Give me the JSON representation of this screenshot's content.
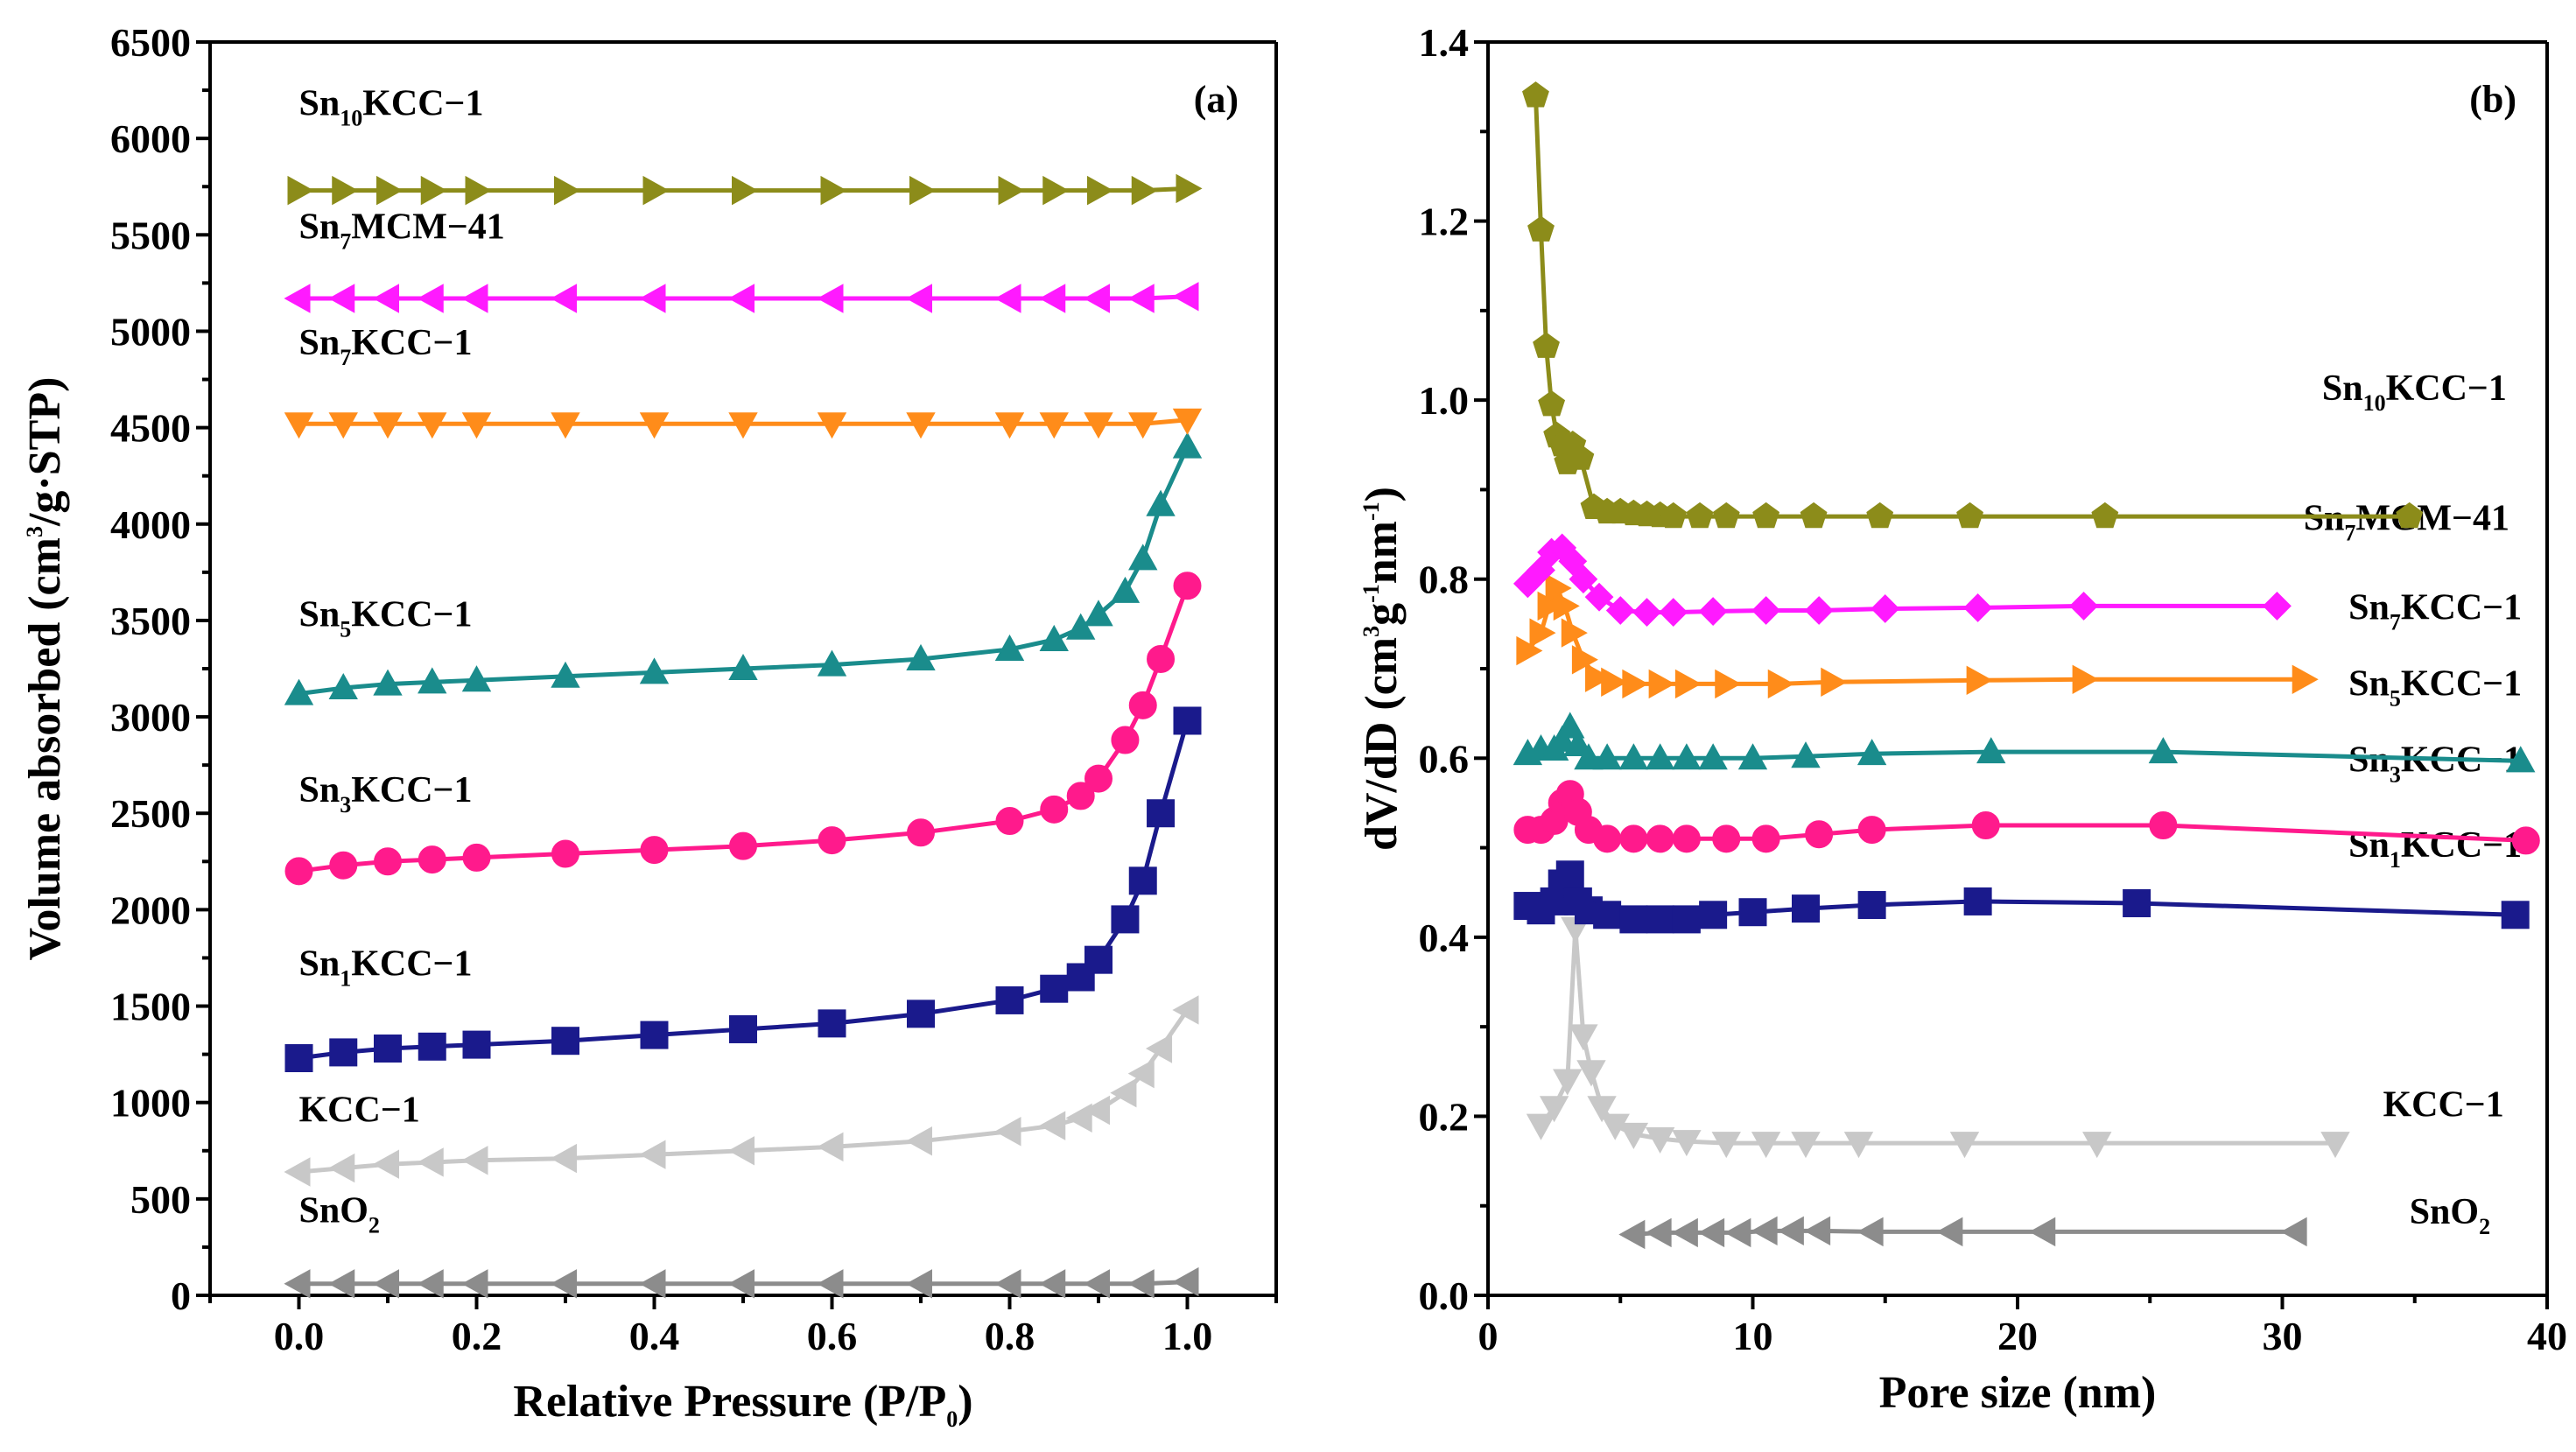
{
  "chart_data": [
    {
      "type": "scatter",
      "panel": "(a)",
      "xlabel": "Relative Pressure (P/P0)",
      "ylabel": "Volume absorbed (cm3/g·STP)",
      "xlim": [
        -0.1,
        1.1
      ],
      "ylim": [
        0,
        6500
      ],
      "xticks": [
        0.0,
        0.2,
        0.4,
        0.6,
        0.8,
        1.0
      ],
      "xtick_labels": [
        "0.0",
        "0.2",
        "0.4",
        "0.6",
        "0.8",
        "1.0"
      ],
      "yticks": [
        0,
        500,
        1000,
        1500,
        2000,
        2500,
        3000,
        3500,
        4000,
        4500,
        5000,
        5500,
        6000,
        6500
      ],
      "ytick_labels": [
        "0",
        "500",
        "1000",
        "1500",
        "2000",
        "2500",
        "3000",
        "3500",
        "4000",
        "4500",
        "5000",
        "5500",
        "6000",
        "6500"
      ],
      "series": [
        {
          "name": "SnO2",
          "label_main": "SnO",
          "label_sub": "2",
          "color": "#8c8c8c",
          "marker": "triangle-left",
          "label_pos": [
            0.0,
            380
          ],
          "x": [
            0.0,
            0.05,
            0.1,
            0.15,
            0.2,
            0.3,
            0.4,
            0.5,
            0.6,
            0.7,
            0.8,
            0.85,
            0.9,
            0.95,
            1.0
          ],
          "y": [
            60,
            60,
            60,
            60,
            60,
            60,
            60,
            60,
            60,
            60,
            60,
            60,
            60,
            60,
            70
          ]
        },
        {
          "name": "KCC-1",
          "label_main": "KCC−1",
          "label_sub": "",
          "color": "#c8c8c8",
          "marker": "triangle-left",
          "label_pos": [
            0.0,
            900
          ],
          "x": [
            0.0,
            0.05,
            0.1,
            0.15,
            0.2,
            0.3,
            0.4,
            0.5,
            0.6,
            0.7,
            0.8,
            0.85,
            0.88,
            0.9,
            0.93,
            0.95,
            0.97,
            1.0
          ],
          "y": [
            640,
            660,
            680,
            690,
            700,
            710,
            730,
            750,
            770,
            800,
            850,
            880,
            920,
            960,
            1050,
            1150,
            1280,
            1480
          ]
        },
        {
          "name": "Sn1KCC-1",
          "label_main": "Sn",
          "label_sub": "1",
          "label_tail": "KCC−1",
          "color": "#1a1a8c",
          "marker": "square",
          "label_pos": [
            0.0,
            1660
          ],
          "x": [
            0.0,
            0.05,
            0.1,
            0.15,
            0.2,
            0.3,
            0.4,
            0.5,
            0.6,
            0.7,
            0.8,
            0.85,
            0.88,
            0.9,
            0.93,
            0.95,
            0.97,
            1.0
          ],
          "y": [
            1230,
            1260,
            1280,
            1290,
            1300,
            1320,
            1350,
            1380,
            1410,
            1460,
            1530,
            1590,
            1650,
            1740,
            1950,
            2150,
            2500,
            2980
          ]
        },
        {
          "name": "Sn3KCC-1",
          "label_main": "Sn",
          "label_sub": "3",
          "label_tail": "KCC−1",
          "color": "#ff1a8c",
          "marker": "circle",
          "label_pos": [
            0.0,
            2560
          ],
          "x": [
            0.0,
            0.05,
            0.1,
            0.15,
            0.2,
            0.3,
            0.4,
            0.5,
            0.6,
            0.7,
            0.8,
            0.85,
            0.88,
            0.9,
            0.93,
            0.95,
            0.97,
            1.0
          ],
          "y": [
            2200,
            2230,
            2250,
            2260,
            2270,
            2290,
            2310,
            2330,
            2360,
            2400,
            2460,
            2520,
            2590,
            2680,
            2880,
            3060,
            3300,
            3680
          ]
        },
        {
          "name": "Sn5KCC-1",
          "label_main": "Sn",
          "label_sub": "5",
          "label_tail": "KCC−1",
          "color": "#1a8c8c",
          "marker": "triangle-up",
          "label_pos": [
            0.0,
            3470
          ],
          "x": [
            0.0,
            0.05,
            0.1,
            0.15,
            0.2,
            0.3,
            0.4,
            0.5,
            0.6,
            0.7,
            0.8,
            0.85,
            0.88,
            0.9,
            0.93,
            0.95,
            0.97,
            1.0
          ],
          "y": [
            3120,
            3150,
            3170,
            3180,
            3190,
            3210,
            3230,
            3250,
            3270,
            3300,
            3350,
            3400,
            3460,
            3530,
            3650,
            3820,
            4100,
            4400
          ]
        },
        {
          "name": "Sn7KCC-1",
          "label_main": "Sn",
          "label_sub": "7",
          "label_tail": "KCC−1",
          "color": "#ff8c1a",
          "marker": "triangle-down",
          "label_pos": [
            0.0,
            4880
          ],
          "x": [
            0.0,
            0.05,
            0.1,
            0.15,
            0.2,
            0.3,
            0.4,
            0.5,
            0.6,
            0.7,
            0.8,
            0.85,
            0.9,
            0.95,
            1.0
          ],
          "y": [
            4520,
            4520,
            4520,
            4520,
            4520,
            4520,
            4520,
            4520,
            4520,
            4520,
            4520,
            4520,
            4520,
            4520,
            4540
          ]
        },
        {
          "name": "Sn7MCM-41",
          "label_main": "Sn",
          "label_sub": "7",
          "label_tail": "MCM−41",
          "color": "#ff1aff",
          "marker": "triangle-left",
          "label_pos": [
            0.0,
            5480
          ],
          "x": [
            0.0,
            0.05,
            0.1,
            0.15,
            0.2,
            0.3,
            0.4,
            0.5,
            0.6,
            0.7,
            0.8,
            0.85,
            0.9,
            0.95,
            1.0
          ],
          "y": [
            5170,
            5170,
            5170,
            5170,
            5170,
            5170,
            5170,
            5170,
            5170,
            5170,
            5170,
            5170,
            5170,
            5170,
            5180
          ]
        },
        {
          "name": "Sn10KCC-1",
          "label_main": "Sn",
          "label_sub": "10",
          "label_tail": "KCC−1",
          "color": "#8c8c1a",
          "marker": "triangle-right",
          "label_pos": [
            0.0,
            6120
          ],
          "x": [
            0.0,
            0.05,
            0.1,
            0.15,
            0.2,
            0.3,
            0.4,
            0.5,
            0.6,
            0.7,
            0.8,
            0.85,
            0.9,
            0.95,
            1.0
          ],
          "y": [
            5730,
            5730,
            5730,
            5730,
            5730,
            5730,
            5730,
            5730,
            5730,
            5730,
            5730,
            5730,
            5730,
            5730,
            5740
          ]
        }
      ]
    },
    {
      "type": "line",
      "panel": "(b)",
      "xlabel": "Pore size (nm)",
      "ylabel": "dV/dD (cm3g-1nm-1)",
      "xlim": [
        0,
        40
      ],
      "ylim": [
        0.0,
        1.4
      ],
      "xticks": [
        0,
        10,
        20,
        30,
        40
      ],
      "xtick_labels": [
        "0",
        "10",
        "20",
        "30",
        "40"
      ],
      "yticks": [
        0.0,
        0.2,
        0.4,
        0.6,
        0.8,
        1.0,
        1.2,
        1.4
      ],
      "ytick_labels": [
        "0.0",
        "0.2",
        "0.4",
        "0.6",
        "0.8",
        "1.0",
        "1.2",
        "1.4"
      ],
      "series": [
        {
          "name": "SnO2",
          "label_main": "SnO",
          "label_sub": "2",
          "color": "#8c8c8c",
          "marker": "triangle-left",
          "label_pos": [
            34.8,
            0.08
          ],
          "x": [
            5.5,
            6.5,
            7.5,
            8.5,
            9.5,
            10.5,
            11.5,
            12.5,
            14.5,
            17.5,
            21,
            30.5
          ],
          "y": [
            0.068,
            0.07,
            0.07,
            0.07,
            0.07,
            0.072,
            0.072,
            0.072,
            0.071,
            0.071,
            0.071,
            0.071
          ]
        },
        {
          "name": "KCC-1",
          "label_main": "KCC−1",
          "label_sub": "",
          "color": "#c8c8c8",
          "marker": "triangle-down",
          "label_pos": [
            33.8,
            0.2
          ],
          "x": [
            2.0,
            2.5,
            3.0,
            3.3,
            3.6,
            3.9,
            4.3,
            4.8,
            5.5,
            6.5,
            7.5,
            9,
            10.5,
            12,
            14,
            18,
            23,
            32
          ],
          "y": [
            0.19,
            0.21,
            0.24,
            0.41,
            0.29,
            0.25,
            0.21,
            0.19,
            0.18,
            0.175,
            0.172,
            0.17,
            0.17,
            0.17,
            0.17,
            0.17,
            0.17,
            0.17
          ]
        },
        {
          "name": "Sn1KCC-1",
          "label_main": "Sn",
          "label_sub": "1",
          "label_tail": "KCC−1",
          "color": "#1a1a8c",
          "marker": "square",
          "label_pos": [
            32.5,
            0.49
          ],
          "x": [
            1.5,
            2.0,
            2.5,
            2.8,
            3.1,
            3.4,
            3.8,
            4.5,
            5.5,
            6.5,
            7.5,
            8.5,
            10,
            12,
            14.5,
            18.5,
            24.5,
            38.8
          ],
          "y": [
            0.435,
            0.43,
            0.44,
            0.46,
            0.47,
            0.44,
            0.43,
            0.425,
            0.42,
            0.42,
            0.42,
            0.425,
            0.428,
            0.432,
            0.436,
            0.44,
            0.438,
            0.425
          ]
        },
        {
          "name": "Sn3KCC-1",
          "label_main": "Sn",
          "label_sub": "3",
          "label_tail": "KCC−1",
          "color": "#ff1a8c",
          "marker": "circle",
          "label_pos": [
            32.5,
            0.585
          ],
          "x": [
            1.5,
            2.0,
            2.5,
            2.8,
            3.1,
            3.4,
            3.8,
            4.5,
            5.5,
            6.5,
            7.5,
            9,
            10.5,
            12.5,
            14.5,
            18.8,
            25.5,
            39.2
          ],
          "y": [
            0.52,
            0.52,
            0.53,
            0.55,
            0.56,
            0.54,
            0.52,
            0.51,
            0.51,
            0.51,
            0.51,
            0.51,
            0.51,
            0.515,
            0.52,
            0.525,
            0.525,
            0.508
          ]
        },
        {
          "name": "Sn5KCC-1",
          "label_main": "Sn",
          "label_sub": "5",
          "label_tail": "KCC−1",
          "color": "#1a8c8c",
          "marker": "triangle-up",
          "label_pos": [
            32.5,
            0.67
          ],
          "x": [
            1.5,
            2.0,
            2.5,
            2.8,
            3.1,
            3.4,
            3.8,
            4.5,
            5.5,
            6.5,
            7.5,
            8.5,
            10,
            12,
            14.5,
            19,
            25.5,
            39
          ],
          "y": [
            0.605,
            0.61,
            0.61,
            0.62,
            0.635,
            0.615,
            0.6,
            0.6,
            0.6,
            0.6,
            0.6,
            0.6,
            0.6,
            0.602,
            0.605,
            0.607,
            0.607,
            0.597
          ]
        },
        {
          "name": "Sn7KCC-1",
          "label_main": "Sn",
          "label_sub": "7",
          "label_tail": "KCC−1",
          "color": "#ff8c1a",
          "marker": "triangle-right",
          "label_pos": [
            32.5,
            0.755
          ],
          "x": [
            1.5,
            2.0,
            2.3,
            2.6,
            2.9,
            3.2,
            3.6,
            4.1,
            4.7,
            5.5,
            6.5,
            7.5,
            9,
            11,
            13,
            18.5,
            22.5,
            30.8
          ],
          "y": [
            0.72,
            0.74,
            0.77,
            0.79,
            0.77,
            0.74,
            0.71,
            0.69,
            0.685,
            0.683,
            0.683,
            0.683,
            0.683,
            0.683,
            0.685,
            0.687,
            0.688,
            0.688
          ]
        },
        {
          "name": "Sn7MCM-41",
          "label_main": "Sn",
          "label_sub": "7",
          "label_tail": "MCM−41",
          "color": "#ff1aff",
          "marker": "diamond",
          "label_pos": [
            30.8,
            0.855
          ],
          "x": [
            1.5,
            2.0,
            2.4,
            2.8,
            3.2,
            3.6,
            4.2,
            5.0,
            6.0,
            7.0,
            8.5,
            10.5,
            12.5,
            15,
            18.5,
            22.5,
            29.8
          ],
          "y": [
            0.795,
            0.81,
            0.83,
            0.835,
            0.82,
            0.8,
            0.78,
            0.765,
            0.763,
            0.763,
            0.764,
            0.765,
            0.765,
            0.767,
            0.768,
            0.77,
            0.77
          ]
        },
        {
          "name": "Sn10KCC-1",
          "label_main": "Sn",
          "label_sub": "10",
          "label_tail": "KCC−1",
          "color": "#8c8c1a",
          "marker": "pentagon",
          "label_pos": [
            31.5,
            1.0
          ],
          "x": [
            1.8,
            2.0,
            2.2,
            2.4,
            2.6,
            2.8,
            3.0,
            3.2,
            3.5,
            4.0,
            4.5,
            5.0,
            5.5,
            6.0,
            6.5,
            7.0,
            8.0,
            9.0,
            10.5,
            12.3,
            14.8,
            18.2,
            23.3,
            34.8
          ],
          "y": [
            1.34,
            1.19,
            1.06,
            0.995,
            0.96,
            0.95,
            0.93,
            0.95,
            0.935,
            0.88,
            0.875,
            0.875,
            0.873,
            0.872,
            0.871,
            0.87,
            0.87,
            0.87,
            0.87,
            0.87,
            0.87,
            0.87,
            0.87,
            0.87
          ]
        }
      ]
    }
  ]
}
